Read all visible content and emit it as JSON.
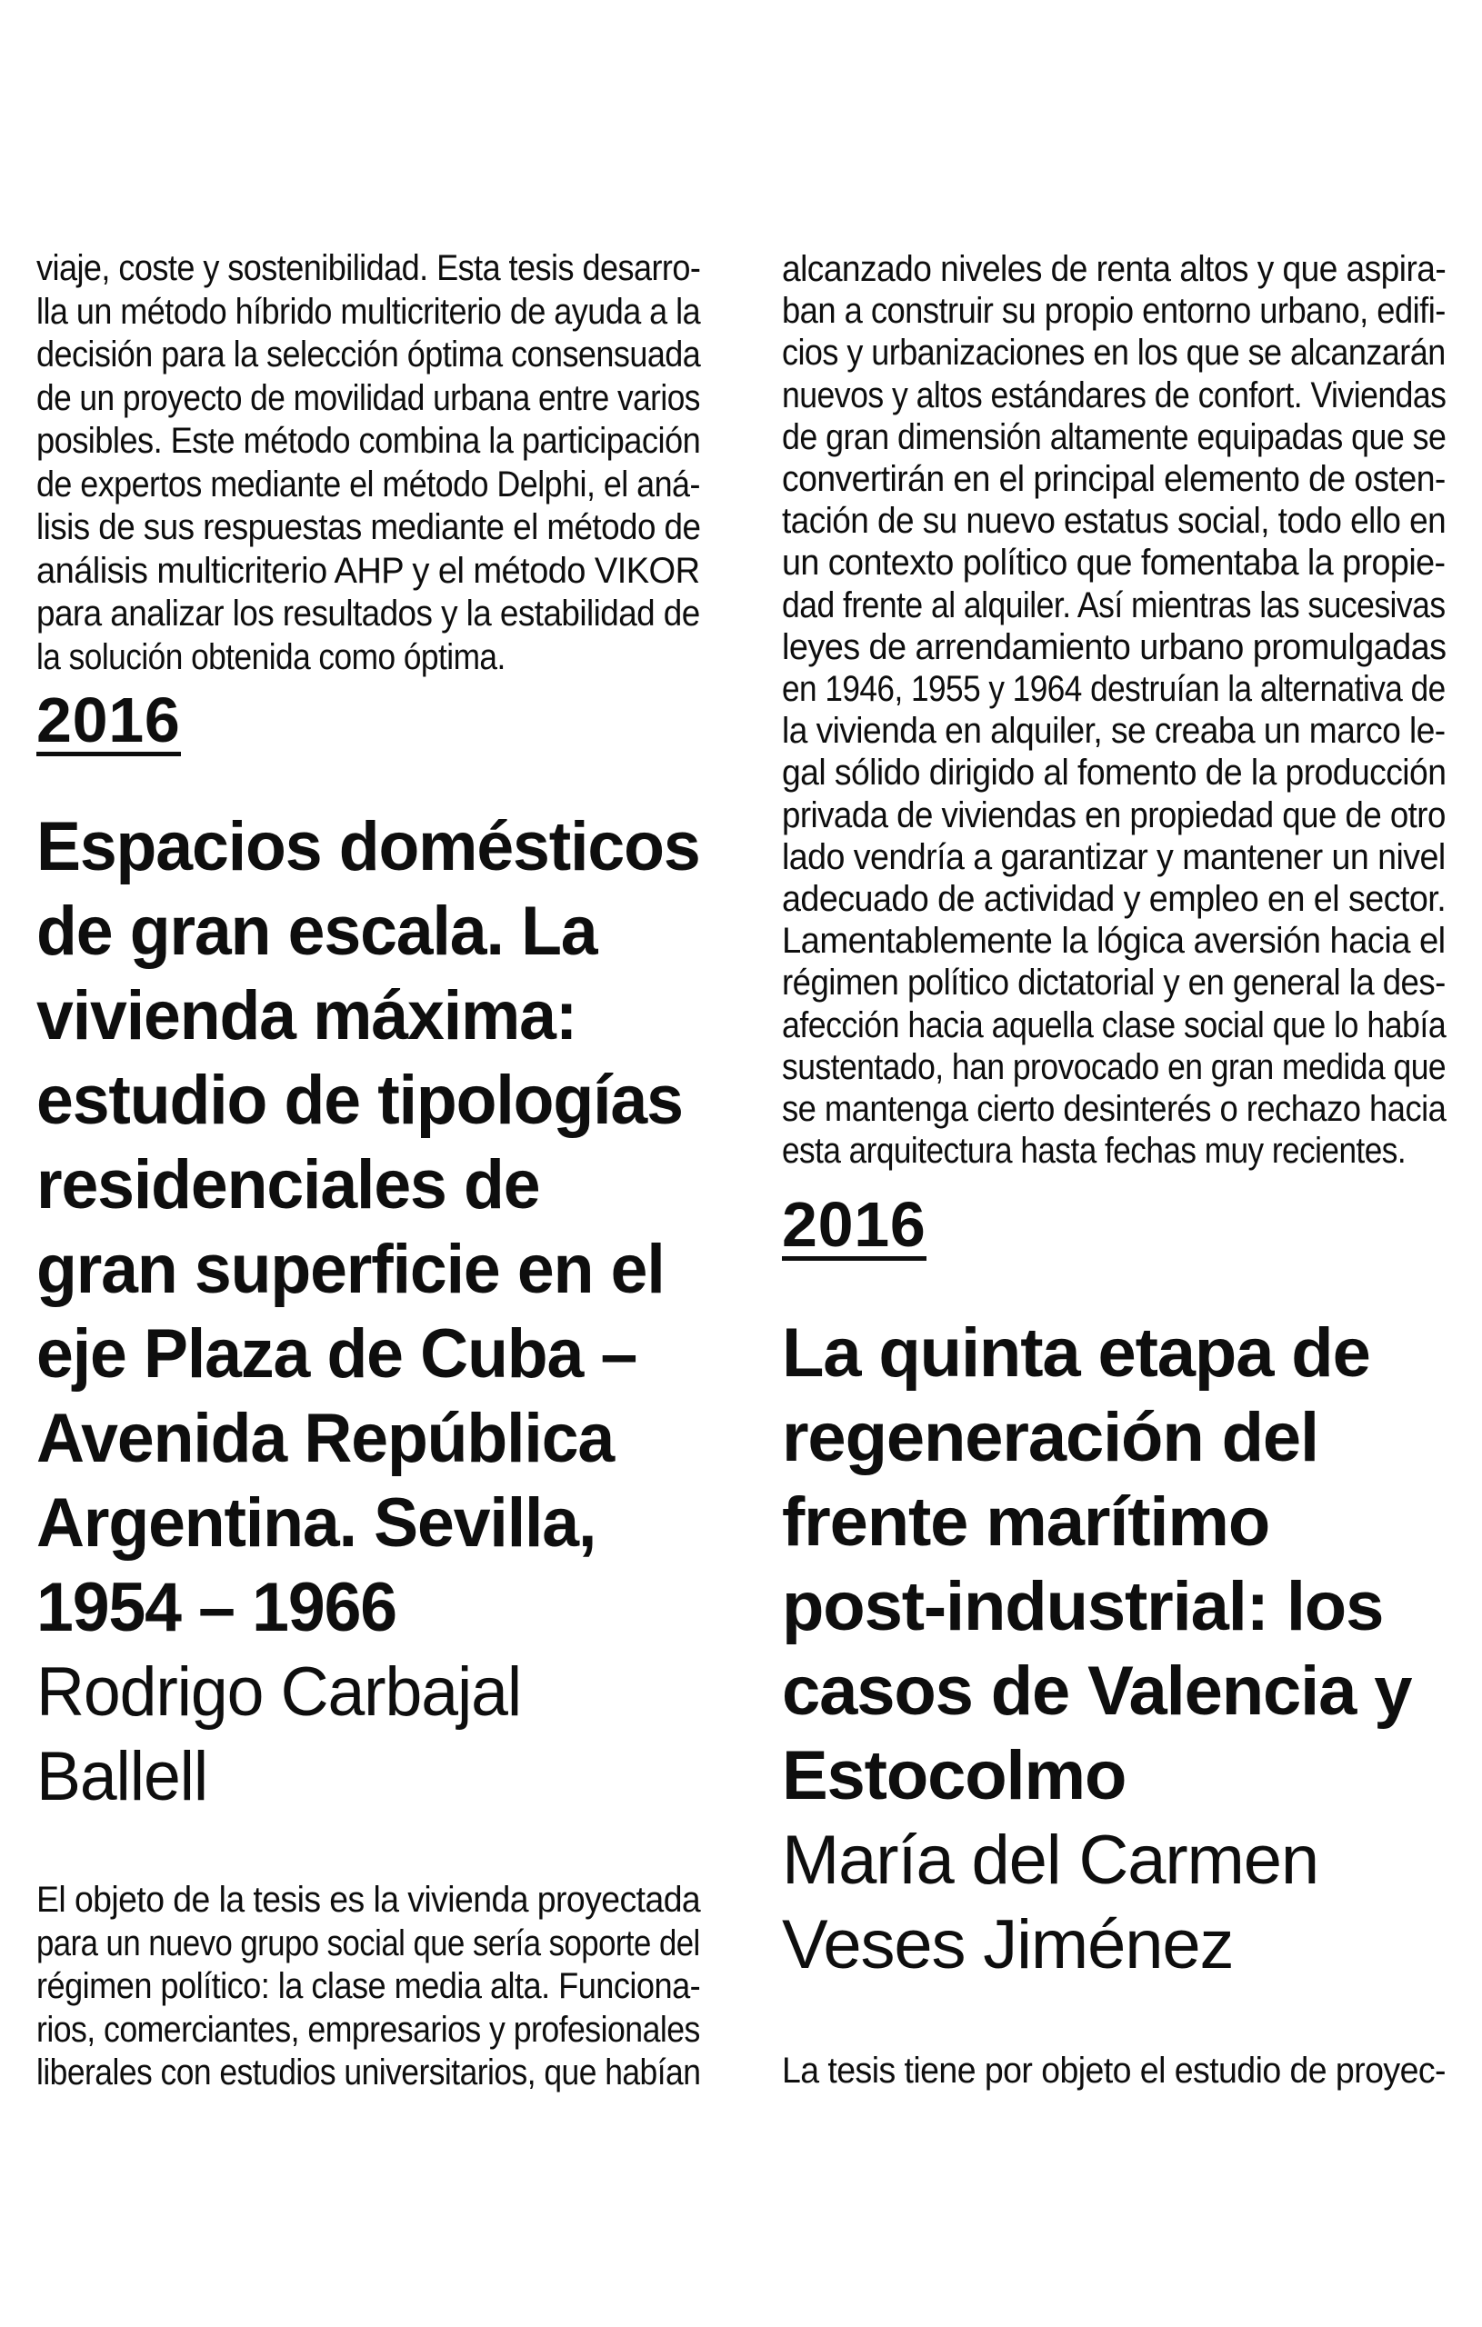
{
  "page": {
    "background_color": "#ffffff",
    "text_color": "#0e0e0e",
    "language": "es"
  },
  "left_column": {
    "intro_paragraph": {
      "lines": [
        "viaje, coste y sostenibilidad. Esta tesis desarro-",
        "lla un método híbrido multicriterio de ayuda a la",
        "decisión para la selección óptima consensuada",
        "de un proyecto de movilidad urbana entre varios",
        "posibles. Este método combina la participación",
        "de expertos mediante el método Delphi, el aná-",
        "lisis de sus respuestas mediante el método de",
        "análisis multicriterio AHP y el método VIKOR",
        "para analizar los resultados y la estabilidad de",
        "la solución obtenida como óptima."
      ]
    },
    "year_heading": "2016",
    "entry": {
      "title_lines": [
        "Espacios domésticos",
        "de gran escala. La",
        "vivienda máxima:",
        "estudio de tipologías",
        "residenciales de",
        "gran superficie en el",
        "eje Plaza de Cuba –",
        "Avenida República",
        "Argentina. Sevilla,",
        "1954 – 1966"
      ],
      "author_lines": [
        "Rodrigo Carbajal",
        "Ballell"
      ]
    },
    "body_paragraph": {
      "lines": [
        "El objeto de la tesis es la vivienda proyectada",
        "para un nuevo grupo social que sería soporte del",
        "régimen político: la clase media alta. Funciona-",
        "rios, comerciantes, empresarios y profesionales",
        "liberales con estudios universitarios, que habían"
      ]
    }
  },
  "right_column": {
    "intro_paragraph": {
      "lines": [
        "alcanzado niveles de renta altos y que aspira-",
        "ban a construir su propio entorno urbano, edifi-",
        "cios y urbanizaciones en los que se alcanzarán",
        "nuevos y altos estándares de confort. Viviendas",
        "de gran dimensión altamente equipadas que se",
        "convertirán en el principal elemento de osten-",
        "tación de su nuevo estatus social, todo ello en",
        "un contexto político que fomentaba la propie-",
        "dad frente al alquiler. Así mientras las sucesivas",
        "leyes de arrendamiento urbano promulgadas",
        "en 1946, 1955 y 1964 destruían la alternativa de",
        "la vivienda en alquiler, se creaba un marco le-",
        "gal sólido dirigido al fomento de la producción",
        "privada de viviendas en propiedad que de otro",
        "lado vendría a garantizar y mantener un nivel",
        "adecuado de actividad y empleo en el sector.",
        "Lamentablemente la lógica aversión hacia el",
        "régimen político dictatorial y en general la des-",
        "afección hacia aquella clase social que lo había",
        "sustentado, han provocado en gran medida que",
        "se mantenga cierto desinterés o rechazo hacia",
        "esta arquitectura hasta fechas muy recientes."
      ]
    },
    "year_heading": "2016",
    "entry": {
      "title_lines": [
        "La quinta etapa de",
        "regeneración del",
        "frente marítimo",
        "post-industrial: los",
        "casos de Valencia y",
        "Estocolmo"
      ],
      "author_lines": [
        "María del Carmen",
        "Veses Jiménez"
      ]
    },
    "body_paragraph": {
      "lines": [
        "La tesis tiene por objeto el estudio de proyec-"
      ]
    }
  }
}
